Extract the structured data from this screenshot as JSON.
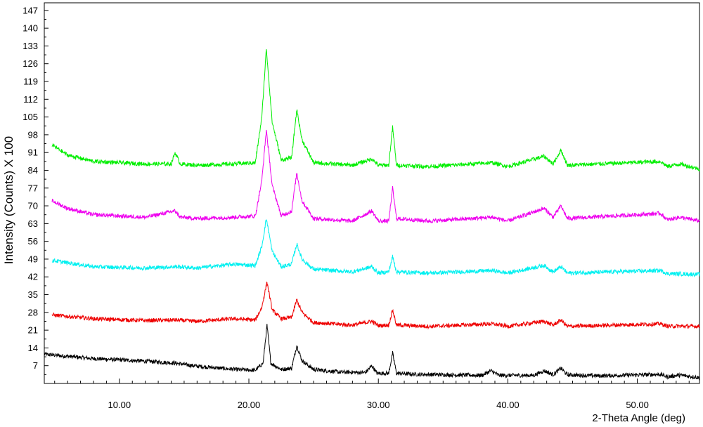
{
  "chart_data": {
    "type": "line",
    "xlabel": "2-Theta Angle (deg)",
    "ylabel": "Intensity (Counts) X 100",
    "xlim": [
      4.2,
      54.8
    ],
    "ylim": [
      0,
      150
    ],
    "x_ticks": [
      10,
      20,
      30,
      40,
      50
    ],
    "x_tick_labels": [
      "10.00",
      "20.00",
      "30.00",
      "40.00",
      "50.00"
    ],
    "y_ticks": [
      7,
      14,
      21,
      28,
      35,
      42,
      49,
      56,
      63,
      70,
      77,
      84,
      91,
      98,
      105,
      112,
      119,
      126,
      133,
      140,
      147
    ],
    "y_tick_labels": [
      "7",
      "14",
      "21",
      "28",
      "35",
      "42",
      "49",
      "56",
      "63",
      "70",
      "77",
      "84",
      "91",
      "98",
      "105",
      "112",
      "119",
      "126",
      "133",
      "140",
      "147"
    ],
    "grid": false,
    "series": [
      {
        "color": "#000000",
        "points": [
          [
            4.2,
            11.5
          ],
          [
            8,
            9.8
          ],
          [
            12,
            8.8
          ],
          [
            14.3,
            8
          ],
          [
            16,
            6.8
          ],
          [
            19,
            5.5
          ],
          [
            20.5,
            5.2
          ],
          [
            21.1,
            8
          ],
          [
            21.4,
            23
          ],
          [
            21.7,
            8
          ],
          [
            22.5,
            5.5
          ],
          [
            23.3,
            6
          ],
          [
            23.7,
            15
          ],
          [
            24.1,
            9
          ],
          [
            25,
            5.5
          ],
          [
            27,
            4.5
          ],
          [
            29,
            4.3
          ],
          [
            29.5,
            7
          ],
          [
            29.9,
            4
          ],
          [
            30.8,
            4
          ],
          [
            31.1,
            12
          ],
          [
            31.4,
            4
          ],
          [
            33,
            3.6
          ],
          [
            38,
            3.2
          ],
          [
            38.7,
            5
          ],
          [
            39.3,
            3.2
          ],
          [
            42,
            3.2
          ],
          [
            42.8,
            5
          ],
          [
            43.5,
            3.5
          ],
          [
            44.1,
            6
          ],
          [
            44.6,
            3.4
          ],
          [
            47,
            3
          ],
          [
            51.8,
            3.6
          ],
          [
            52.3,
            2.6
          ],
          [
            53.3,
            3.3
          ],
          [
            54.8,
            2.3
          ]
        ]
      },
      {
        "color": "#ee0000",
        "points": [
          [
            4.8,
            27
          ],
          [
            8,
            25.5
          ],
          [
            12,
            24.8
          ],
          [
            14.3,
            25
          ],
          [
            16,
            24.5
          ],
          [
            18.8,
            25.5
          ],
          [
            20.5,
            25
          ],
          [
            21,
            30
          ],
          [
            21.4,
            40
          ],
          [
            21.8,
            29
          ],
          [
            22.5,
            25.5
          ],
          [
            23.3,
            26
          ],
          [
            23.7,
            33
          ],
          [
            24.1,
            28
          ],
          [
            25,
            24
          ],
          [
            28,
            23
          ],
          [
            29.5,
            24.5
          ],
          [
            30,
            22.8
          ],
          [
            30.8,
            23
          ],
          [
            31.1,
            29
          ],
          [
            31.4,
            23
          ],
          [
            34,
            22.5
          ],
          [
            38.8,
            23.5
          ],
          [
            40,
            22.5
          ],
          [
            42.8,
            24.5
          ],
          [
            43.5,
            23
          ],
          [
            44.1,
            25
          ],
          [
            44.6,
            22.5
          ],
          [
            51.8,
            23.5
          ],
          [
            52.3,
            22.6
          ],
          [
            54.8,
            22.5
          ]
        ]
      },
      {
        "color": "#00f0f0",
        "points": [
          [
            4.8,
            48.5
          ],
          [
            8,
            46
          ],
          [
            12,
            45.5
          ],
          [
            14.3,
            46
          ],
          [
            16,
            45.5
          ],
          [
            18.8,
            47
          ],
          [
            20.5,
            46.5
          ],
          [
            21,
            54
          ],
          [
            21.35,
            65
          ],
          [
            21.8,
            52
          ],
          [
            22.5,
            46
          ],
          [
            23.3,
            47
          ],
          [
            23.7,
            55
          ],
          [
            24.1,
            49
          ],
          [
            25,
            45
          ],
          [
            28,
            44
          ],
          [
            29.5,
            46
          ],
          [
            30,
            43.5
          ],
          [
            30.8,
            44
          ],
          [
            31.1,
            50
          ],
          [
            31.4,
            44
          ],
          [
            34,
            43.5
          ],
          [
            38.8,
            44.5
          ],
          [
            40,
            43.5
          ],
          [
            42.8,
            46.5
          ],
          [
            43.5,
            44
          ],
          [
            44.1,
            46
          ],
          [
            44.6,
            43.5
          ],
          [
            51.8,
            44.5
          ],
          [
            52.3,
            43.3
          ],
          [
            54.8,
            43
          ]
        ]
      },
      {
        "color": "#ee00ee",
        "points": [
          [
            4.8,
            72
          ],
          [
            6,
            69
          ],
          [
            8,
            66.5
          ],
          [
            12,
            65.5
          ],
          [
            14.3,
            68
          ],
          [
            14.7,
            65.5
          ],
          [
            16,
            65
          ],
          [
            18.8,
            65.5
          ],
          [
            20.5,
            66
          ],
          [
            21,
            80
          ],
          [
            21.35,
            100
          ],
          [
            21.8,
            78
          ],
          [
            22.5,
            66
          ],
          [
            23.3,
            68
          ],
          [
            23.7,
            83
          ],
          [
            24.1,
            72
          ],
          [
            25,
            65
          ],
          [
            28,
            64
          ],
          [
            29.5,
            68
          ],
          [
            30,
            64
          ],
          [
            30.8,
            64
          ],
          [
            31.1,
            77
          ],
          [
            31.4,
            65
          ],
          [
            34,
            64
          ],
          [
            38.8,
            65.5
          ],
          [
            40,
            64
          ],
          [
            42.8,
            69
          ],
          [
            43.5,
            65.5
          ],
          [
            44.1,
            70
          ],
          [
            44.6,
            65
          ],
          [
            51.8,
            67
          ],
          [
            52.3,
            64.5
          ],
          [
            53.3,
            65.5
          ],
          [
            54.8,
            64
          ]
        ]
      },
      {
        "color": "#00ee00",
        "points": [
          [
            4.8,
            94
          ],
          [
            6,
            90
          ],
          [
            8,
            87.5
          ],
          [
            12,
            86.5
          ],
          [
            14,
            86.5
          ],
          [
            14.3,
            91
          ],
          [
            14.7,
            86.5
          ],
          [
            16,
            86
          ],
          [
            18.8,
            86.5
          ],
          [
            20.5,
            87
          ],
          [
            21,
            105
          ],
          [
            21.35,
            132
          ],
          [
            21.8,
            103
          ],
          [
            22.5,
            88
          ],
          [
            23.3,
            89
          ],
          [
            23.7,
            108
          ],
          [
            24.1,
            96
          ],
          [
            25,
            87
          ],
          [
            28,
            86
          ],
          [
            29.5,
            88.5
          ],
          [
            30,
            86
          ],
          [
            30.8,
            86
          ],
          [
            31.1,
            101
          ],
          [
            31.4,
            86
          ],
          [
            34,
            85.5
          ],
          [
            38.8,
            87
          ],
          [
            40,
            85.5
          ],
          [
            42.8,
            89.5
          ],
          [
            43.5,
            86.5
          ],
          [
            44.1,
            92
          ],
          [
            44.6,
            86
          ],
          [
            51.8,
            87.5
          ],
          [
            52.3,
            85.5
          ],
          [
            53.3,
            86.5
          ],
          [
            54.8,
            84.5
          ]
        ]
      }
    ]
  }
}
